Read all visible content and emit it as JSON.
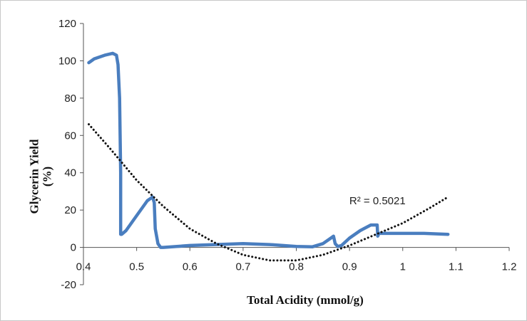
{
  "chart_data": {
    "type": "line",
    "title": "",
    "xlabel": "Total Acidity (mmol/g)",
    "ylabel": "Glycerin Yield (%)",
    "xlim": [
      0.4,
      1.2
    ],
    "ylim": [
      -20,
      120
    ],
    "x_ticks": [
      0.4,
      0.5,
      0.6,
      0.7,
      0.8,
      0.9,
      1,
      1.1,
      1.2
    ],
    "x_tick_labels": [
      "0.4",
      "0.5",
      "0.6",
      "0.7",
      "0.8",
      "0.9",
      "1",
      "1.1",
      "1.2"
    ],
    "y_ticks": [
      -20,
      0,
      20,
      40,
      60,
      80,
      100,
      120
    ],
    "y_tick_labels": [
      "-20",
      "0",
      "20",
      "40",
      "60",
      "80",
      "100",
      "120"
    ],
    "grid": false,
    "legend": "none",
    "series": [
      {
        "style": "line",
        "color": "#4a7ebf",
        "x": [
          0.41,
          0.42,
          0.44,
          0.455,
          0.462,
          0.465,
          0.468,
          0.47,
          0.47,
          0.472,
          0.48,
          0.5,
          0.52,
          0.53,
          0.533,
          0.535,
          0.54,
          0.545,
          0.55,
          0.6,
          0.7,
          0.75,
          0.8,
          0.83,
          0.85,
          0.865,
          0.87,
          0.873,
          0.878,
          0.885,
          0.9,
          0.92,
          0.94,
          0.952,
          0.953,
          0.955,
          0.96,
          1.0,
          1.04,
          1.085
        ],
        "y": [
          99,
          101,
          103,
          104,
          103,
          98,
          80,
          40,
          7,
          7,
          9,
          17,
          25,
          27,
          24,
          10,
          2,
          0,
          0,
          1,
          2,
          1.5,
          0.5,
          0.3,
          2,
          5,
          6,
          2,
          0.5,
          1,
          5,
          9,
          12,
          12,
          6,
          7.5,
          7.5,
          7.5,
          7.5,
          7
        ]
      },
      {
        "style": "dotted",
        "color": "#111111",
        "x": [
          0.41,
          0.45,
          0.5,
          0.55,
          0.6,
          0.65,
          0.7,
          0.75,
          0.8,
          0.85,
          0.9,
          0.95,
          1.0,
          1.05,
          1.085
        ],
        "y": [
          66,
          53,
          36,
          22,
          10,
          2,
          -4,
          -7,
          -7,
          -4,
          1,
          7,
          13,
          21,
          27
        ]
      }
    ],
    "annotations": [
      {
        "text": "R² = 0.5021",
        "x": 0.96,
        "y": 25
      }
    ]
  }
}
